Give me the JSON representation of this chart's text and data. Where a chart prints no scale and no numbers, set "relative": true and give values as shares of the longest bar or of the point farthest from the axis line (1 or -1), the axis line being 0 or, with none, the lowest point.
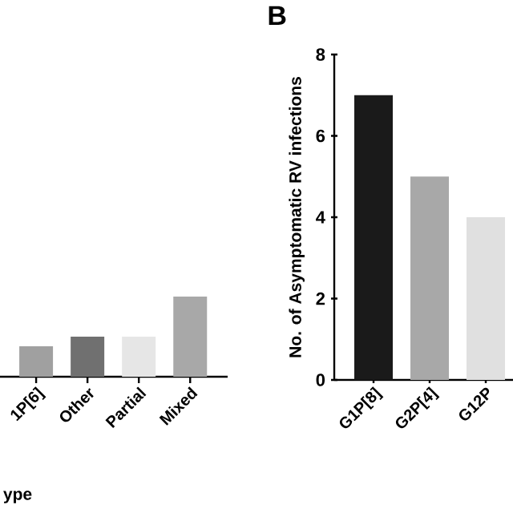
{
  "chart_data": [
    {
      "type": "bar",
      "relative": true,
      "xlabel": "ype",
      "categories": [
        "1P[6]",
        "Other",
        "Partial",
        "Mixed"
      ],
      "values": [
        0.38,
        0.5,
        0.5,
        1.0
      ],
      "colors": [
        "#a0a0a0",
        "#707070",
        "#e6e6e6",
        "#a8a8a8"
      ]
    },
    {
      "type": "bar",
      "title": "B",
      "ylabel": "No. of Asymptomatic RV infections",
      "categories": [
        "G1P[8]",
        "G2P[4]",
        "G12P"
      ],
      "values": [
        7,
        5,
        4
      ],
      "colors": [
        "#1a1a1a",
        "#a8a8a8",
        "#e0e0e0"
      ],
      "ylim": [
        0,
        8
      ],
      "yticks": [
        0,
        2,
        4,
        6,
        8
      ]
    }
  ]
}
